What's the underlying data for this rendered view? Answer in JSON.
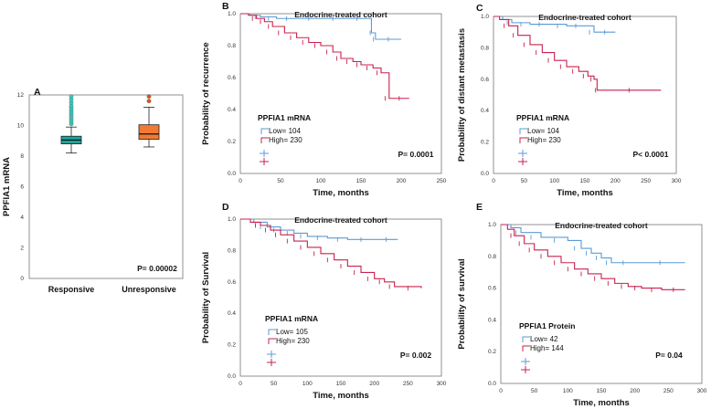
{
  "colors": {
    "low": "#5b9bd5",
    "high": "#c8204e",
    "box_responsive": "#1aa39a",
    "box_unresponsive": "#f07a32",
    "outlier_responsive": "#3cc6b8",
    "outlier_unresponsive": "#d9541e"
  },
  "chart_data": [
    {
      "id": "A",
      "type": "box",
      "panel_label": "A",
      "ylabel": "PPFIA1 mRNA",
      "ylim": [
        0,
        12
      ],
      "yticks": [
        "0",
        "2",
        "4",
        "6",
        "8",
        "10",
        "12"
      ],
      "categories": [
        "Responsive",
        "Unresponsive"
      ],
      "boxes": [
        {
          "name": "Responsive",
          "min": 8.2,
          "q1": 8.8,
          "median": 9.05,
          "q3": 9.3,
          "max": 9.9,
          "outliers": [
            10.1,
            10.25,
            10.4,
            10.55,
            10.7,
            10.85,
            11.0,
            11.15,
            11.3,
            11.5,
            11.7,
            11.9
          ]
        },
        {
          "name": "Unresponsive",
          "min": 8.6,
          "q1": 9.1,
          "median": 9.45,
          "q3": 10.05,
          "max": 11.2,
          "outliers": [
            11.6,
            11.9
          ]
        }
      ],
      "p_value": "P= 0.00002"
    },
    {
      "id": "B",
      "type": "line",
      "panel_label": "B",
      "title": "Endocrine-treated cohort",
      "xlabel": "Time, months",
      "ylabel": "Probability of recurrence",
      "xlim": [
        0,
        250
      ],
      "ylim": [
        0,
        1.0
      ],
      "xticks": [
        "0",
        "50",
        "100",
        "150",
        "200",
        "250"
      ],
      "yticks": [
        "0.0",
        "0.2",
        "0.4",
        "0.6",
        "0.8",
        "1.0"
      ],
      "legend_title": "PPFIA1 mRNA",
      "series": [
        {
          "name": "Low= 104",
          "x": [
            0,
            12,
            25,
            45,
            70,
            100,
            130,
            160,
            163,
            168,
            200
          ],
          "y": [
            1.0,
            0.99,
            0.98,
            0.97,
            0.97,
            0.97,
            0.97,
            0.97,
            0.88,
            0.84,
            0.84
          ]
        },
        {
          "name": "High= 230",
          "x": [
            0,
            10,
            20,
            30,
            40,
            55,
            70,
            85,
            100,
            115,
            125,
            140,
            150,
            165,
            175,
            185,
            210
          ],
          "y": [
            1.0,
            0.99,
            0.97,
            0.95,
            0.92,
            0.88,
            0.85,
            0.82,
            0.8,
            0.76,
            0.72,
            0.7,
            0.68,
            0.66,
            0.63,
            0.47,
            0.47
          ]
        }
      ],
      "p_value": "P= 0.0001"
    },
    {
      "id": "C",
      "type": "line",
      "panel_label": "C",
      "title": "Endocrine-treated cohort",
      "xlabel": "Time, months",
      "ylabel": "Probability of distant metastasis",
      "xlim": [
        0,
        300
      ],
      "ylim": [
        0,
        1.0
      ],
      "xticks": [
        "0",
        "50",
        "100",
        "150",
        "200",
        "250",
        "300"
      ],
      "yticks": [
        "0.0",
        "0.2",
        "0.4",
        "0.6",
        "0.8",
        "1.0"
      ],
      "legend_title": "PPFIA1 mRNA",
      "series": [
        {
          "name": "Low= 104",
          "x": [
            0,
            15,
            30,
            60,
            90,
            120,
            150,
            165,
            200
          ],
          "y": [
            1.0,
            0.98,
            0.96,
            0.95,
            0.95,
            0.94,
            0.94,
            0.9,
            0.9
          ]
        },
        {
          "name": "High= 230",
          "x": [
            0,
            10,
            25,
            40,
            60,
            80,
            100,
            120,
            140,
            155,
            165,
            170,
            275
          ],
          "y": [
            1.0,
            0.98,
            0.94,
            0.88,
            0.82,
            0.77,
            0.72,
            0.68,
            0.65,
            0.62,
            0.6,
            0.53,
            0.53
          ]
        }
      ],
      "p_value": "P< 0.0001"
    },
    {
      "id": "D",
      "type": "line",
      "panel_label": "D",
      "title": "Endocrine-treated cohort",
      "xlabel": "Time, months",
      "ylabel": "Probability of Survival",
      "xlim": [
        0,
        300
      ],
      "ylim": [
        0,
        1.0
      ],
      "xticks": [
        "0",
        "50",
        "100",
        "150",
        "200",
        "250",
        "300"
      ],
      "yticks": [
        "0.0",
        "0.2",
        "0.4",
        "0.6",
        "0.8",
        "1.0"
      ],
      "legend_title": "PPFIA1 mRNA",
      "series": [
        {
          "name": "Low= 105",
          "x": [
            0,
            20,
            40,
            60,
            80,
            100,
            130,
            160,
            200,
            235
          ],
          "y": [
            1.0,
            0.98,
            0.95,
            0.93,
            0.91,
            0.89,
            0.88,
            0.87,
            0.87,
            0.87
          ]
        },
        {
          "name": "High= 230",
          "x": [
            0,
            15,
            30,
            45,
            60,
            80,
            100,
            120,
            140,
            160,
            180,
            200,
            215,
            230,
            270
          ],
          "y": [
            1.0,
            0.98,
            0.96,
            0.93,
            0.9,
            0.86,
            0.82,
            0.78,
            0.74,
            0.7,
            0.66,
            0.62,
            0.6,
            0.57,
            0.56
          ]
        }
      ],
      "p_value": "P= 0.002"
    },
    {
      "id": "E",
      "type": "line",
      "panel_label": "E",
      "title": "Endocrine-treated cohort",
      "xlabel": "Time, months",
      "ylabel": "Probability of survival",
      "xlim": [
        0,
        300
      ],
      "ylim": [
        0,
        1.0
      ],
      "xticks": [
        "0",
        "50",
        "100",
        "150",
        "200",
        "250",
        "300"
      ],
      "yticks": [
        "0.0",
        "0.2",
        "0.4",
        "0.6",
        "0.8",
        "1.0"
      ],
      "legend_title": "PPFIA1 Protein",
      "series": [
        {
          "name": "Low= 42",
          "x": [
            0,
            15,
            30,
            60,
            100,
            120,
            135,
            150,
            165,
            200,
            275
          ],
          "y": [
            1.0,
            0.98,
            0.95,
            0.92,
            0.9,
            0.85,
            0.82,
            0.79,
            0.76,
            0.76,
            0.76
          ]
        },
        {
          "name": "High= 144",
          "x": [
            0,
            10,
            20,
            35,
            50,
            70,
            90,
            110,
            130,
            150,
            170,
            190,
            210,
            240,
            275
          ],
          "y": [
            1.0,
            0.97,
            0.93,
            0.88,
            0.84,
            0.8,
            0.76,
            0.72,
            0.69,
            0.66,
            0.63,
            0.61,
            0.6,
            0.59,
            0.59
          ]
        }
      ],
      "p_value": "P= 0.04"
    }
  ]
}
